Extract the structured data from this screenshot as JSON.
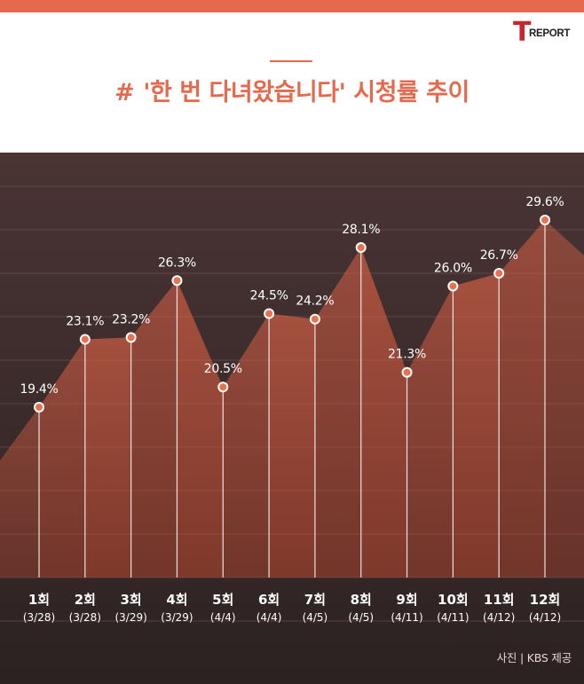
{
  "logo": {
    "letter": "T",
    "word": "REPORT"
  },
  "header": {
    "hash": "#",
    "title": "'한 번 다녀왔습니다' 시청률 추이"
  },
  "credit": "사진 | KBS 제공",
  "colors": {
    "accent": "#e56a4d",
    "dark_bg": "#3a2a2a",
    "area_fill": "#e0573c",
    "point": "#e8724f",
    "grid": "#8a6a64",
    "text_light": "#ffffff"
  },
  "chart_data": {
    "type": "area",
    "categories": [
      "1회",
      "2회",
      "3회",
      "4회",
      "5회",
      "6회",
      "7회",
      "8회",
      "9회",
      "10회",
      "11회",
      "12회"
    ],
    "dates": [
      "(3/28)",
      "(3/28)",
      "(3/29)",
      "(3/29)",
      "(4/4)",
      "(4/4)",
      "(4/5)",
      "(4/5)",
      "(4/11)",
      "(4/11)",
      "(4/12)",
      "(4/12)"
    ],
    "values": [
      19.4,
      23.1,
      23.2,
      26.3,
      20.5,
      24.5,
      24.2,
      28.1,
      21.3,
      26.0,
      26.7,
      29.6
    ],
    "labels": [
      "19.4%",
      "23.1%",
      "23.2%",
      "26.3%",
      "20.5%",
      "24.5%",
      "24.2%",
      "28.1%",
      "21.3%",
      "26.0%",
      "26.7%",
      "29.6%"
    ],
    "unit": "%",
    "grid": true,
    "legend": "none"
  }
}
